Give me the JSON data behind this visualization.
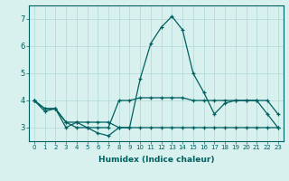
{
  "xlabel": "Humidex (Indice chaleur)",
  "bg_color": "#d8f0ee",
  "grid_color": "#b0d8d8",
  "line_color": "#006060",
  "xlim": [
    -0.5,
    23.5
  ],
  "ylim": [
    2.5,
    7.5
  ],
  "yticks": [
    3,
    4,
    5,
    6,
    7
  ],
  "xtick_labels": [
    "0",
    "1",
    "2",
    "3",
    "4",
    "5",
    "6",
    "7",
    "8",
    "9",
    "10",
    "11",
    "12",
    "13",
    "14",
    "15",
    "16",
    "17",
    "18",
    "19",
    "20",
    "21",
    "22",
    "23"
  ],
  "series": [
    [
      4.0,
      3.6,
      3.7,
      3.0,
      3.2,
      3.0,
      2.8,
      2.7,
      3.0,
      3.0,
      4.8,
      6.1,
      6.7,
      7.1,
      6.6,
      5.0,
      4.3,
      3.5,
      3.9,
      4.0,
      4.0,
      4.0,
      4.0,
      3.5
    ],
    [
      4.0,
      3.7,
      3.7,
      3.2,
      3.0,
      3.0,
      3.0,
      3.0,
      4.0,
      4.0,
      4.1,
      4.1,
      4.1,
      4.1,
      4.1,
      4.0,
      4.0,
      4.0,
      4.0,
      4.0,
      4.0,
      4.0,
      3.5,
      3.0
    ],
    [
      4.0,
      3.7,
      3.7,
      3.2,
      3.2,
      3.2,
      3.2,
      3.2,
      3.0,
      3.0,
      3.0,
      3.0,
      3.0,
      3.0,
      3.0,
      3.0,
      3.0,
      3.0,
      3.0,
      3.0,
      3.0,
      3.0,
      3.0,
      3.0
    ]
  ],
  "xlabel_fontsize": 6.5,
  "xlabel_fontweight": "bold",
  "ytick_fontsize": 6.0,
  "xtick_fontsize": 5.0,
  "linewidth": 0.9,
  "markersize": 2.5
}
